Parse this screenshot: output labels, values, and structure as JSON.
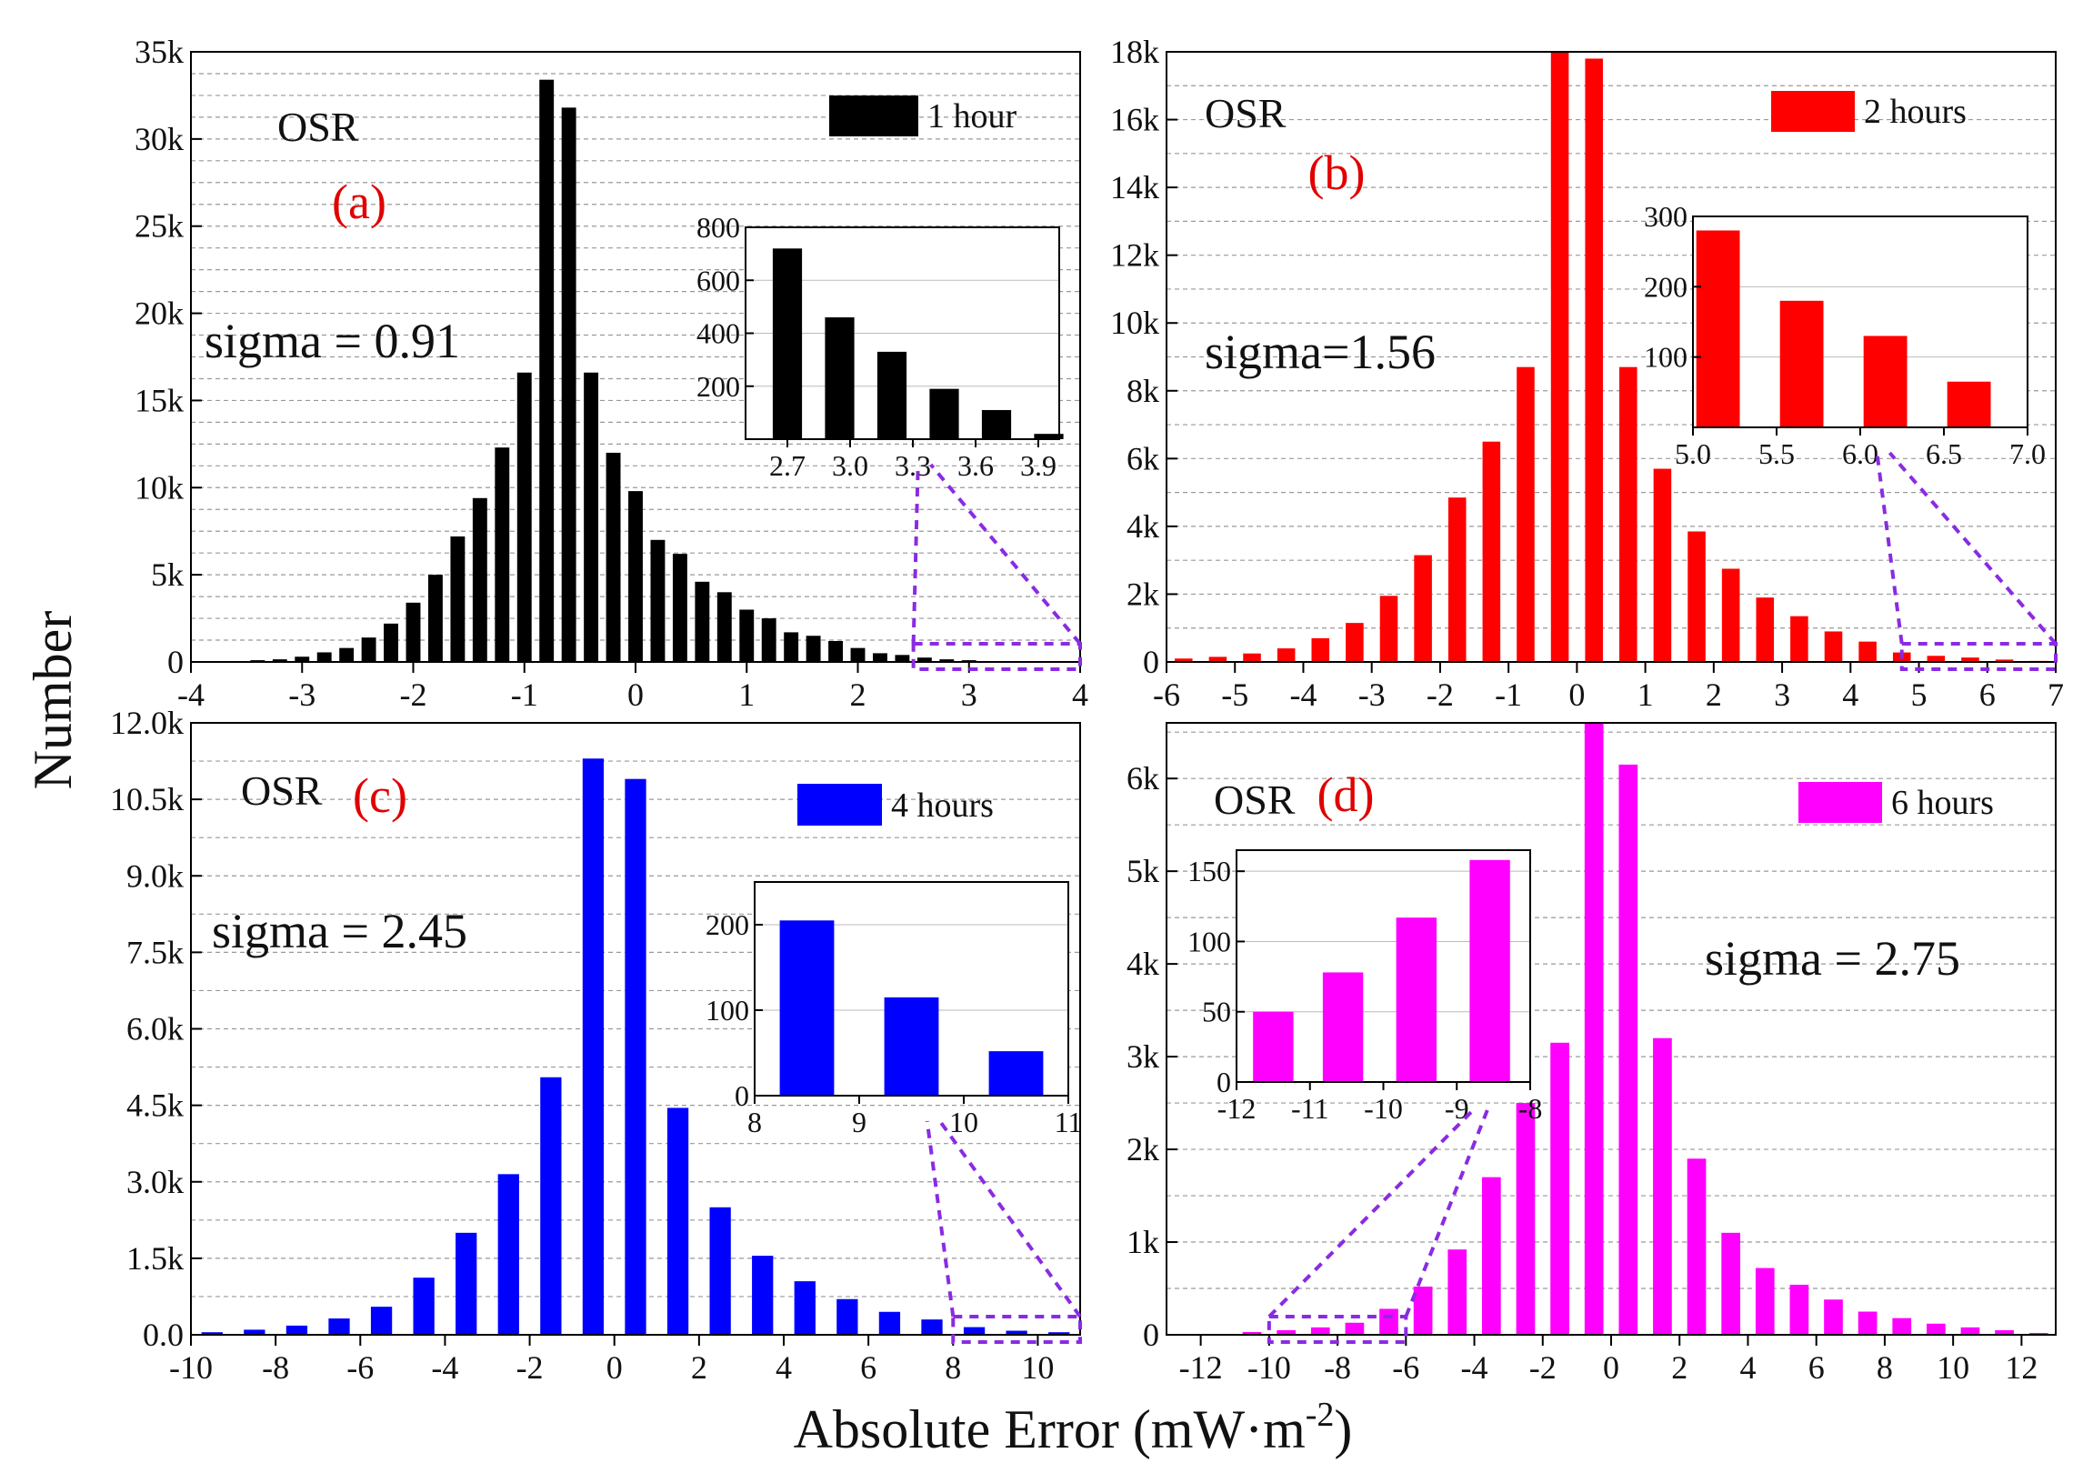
{
  "figure": {
    "y_label": "Number",
    "x_label": "Absolute Error (mW·m",
    "x_label_sup": "-2",
    "x_label_close": ")"
  },
  "chart_data": [
    {
      "type": "bar",
      "panel": "(a)",
      "label": "(a)",
      "method": "OSR",
      "legend": "1 hour",
      "sigma_text": "sigma = 0.91",
      "color": "#000000",
      "xlim": [
        -4,
        4
      ],
      "ylim": [
        0,
        35000
      ],
      "xticks": [
        -4,
        -3,
        -2,
        -1,
        0,
        1,
        2,
        3,
        4
      ],
      "xtick_labels": [
        "-4",
        "-3",
        "-2",
        "-1",
        "0",
        "1",
        "2",
        "3",
        "4"
      ],
      "yticks": [
        0,
        5000,
        10000,
        15000,
        20000,
        25000,
        30000,
        35000
      ],
      "ytick_labels": [
        "0",
        "5k",
        "10k",
        "15k",
        "20k",
        "25k",
        "30k",
        "35k"
      ],
      "minor_y_step": 1250,
      "bar_width": 0.13,
      "x": [
        -3.6,
        -3.4,
        -3.2,
        -3.0,
        -2.8,
        -2.6,
        -2.4,
        -2.2,
        -2.0,
        -1.8,
        -1.6,
        -1.4,
        -1.2,
        -1.0,
        -0.8,
        -0.6,
        -0.4,
        -0.2,
        0.0,
        0.2,
        0.4,
        0.6,
        0.8,
        1.0,
        1.2,
        1.4,
        1.6,
        1.8,
        2.0,
        2.2,
        2.4,
        2.6,
        2.8,
        3.0,
        3.2,
        3.4,
        3.6
      ],
      "values": [
        30,
        100,
        150,
        300,
        550,
        800,
        1400,
        2200,
        3400,
        5000,
        7200,
        9400,
        12300,
        16600,
        33400,
        31800,
        16600,
        12000,
        9800,
        7000,
        6200,
        4600,
        4000,
        3000,
        2500,
        1700,
        1500,
        1200,
        800,
        500,
        400,
        250,
        150,
        100,
        50,
        20,
        10
      ],
      "inset": {
        "xlim": [
          2.5,
          4.0
        ],
        "ylim": [
          0,
          800
        ],
        "xticks": [
          2.7,
          3.0,
          3.3,
          3.6,
          3.9
        ],
        "xtick_labels": [
          "2.7",
          "3.0",
          "3.3",
          "3.6",
          "3.9"
        ],
        "yticks": [
          200,
          400,
          600,
          800
        ],
        "ytick_labels": [
          "200",
          "400",
          "600",
          "800"
        ],
        "bar_width": 0.14,
        "x": [
          2.7,
          2.95,
          3.2,
          3.45,
          3.7,
          3.95
        ],
        "values": [
          720,
          460,
          330,
          190,
          110,
          20
        ]
      },
      "zoom_range": [
        2.5,
        4.0
      ]
    },
    {
      "type": "bar",
      "panel": "(b)",
      "label": "(b)",
      "method": "OSR",
      "legend": "2 hours",
      "sigma_text": "sigma=1.56",
      "color": "#ff0000",
      "xlim": [
        -6,
        7
      ],
      "ylim": [
        0,
        18000
      ],
      "xticks": [
        -6,
        -5,
        -4,
        -3,
        -2,
        -1,
        0,
        1,
        2,
        3,
        4,
        5,
        6,
        7
      ],
      "xtick_labels": [
        "-6",
        "-5",
        "-4",
        "-3",
        "-2",
        "-1",
        "0",
        "1",
        "2",
        "3",
        "4",
        "5",
        "6",
        "7"
      ],
      "yticks": [
        0,
        2000,
        4000,
        6000,
        8000,
        10000,
        12000,
        14000,
        16000,
        18000
      ],
      "ytick_labels": [
        "0",
        "2k",
        "4k",
        "6k",
        "8k",
        "10k",
        "12k",
        "14k",
        "16k",
        "18k"
      ],
      "minor_y_step": 1000,
      "bar_width": 0.26,
      "x": [
        -5.75,
        -5.25,
        -4.75,
        -4.25,
        -3.75,
        -3.25,
        -2.75,
        -2.25,
        -1.75,
        -1.25,
        -0.75,
        -0.25,
        0.25,
        0.75,
        1.25,
        1.75,
        2.25,
        2.75,
        3.25,
        3.75,
        4.25,
        4.75,
        5.25,
        5.75,
        6.25,
        6.75
      ],
      "values": [
        100,
        150,
        250,
        400,
        700,
        1150,
        1950,
        3150,
        4850,
        6500,
        8700,
        18200,
        17800,
        8700,
        5700,
        3850,
        2750,
        1900,
        1350,
        900,
        600,
        280,
        180,
        130,
        70,
        30
      ],
      "inset": {
        "xlim": [
          5.0,
          7.0
        ],
        "ylim": [
          0,
          300
        ],
        "xticks": [
          5.0,
          5.5,
          6.0,
          6.5,
          7.0
        ],
        "xtick_labels": [
          "5.0",
          "5.5",
          "6.0",
          "6.5",
          "7.0"
        ],
        "yticks": [
          100,
          200,
          300
        ],
        "ytick_labels": [
          "100",
          "200",
          "300"
        ],
        "bar_width": 0.26,
        "x": [
          5.15,
          5.65,
          6.15,
          6.65
        ],
        "values": [
          280,
          180,
          130,
          65
        ]
      },
      "zoom_range": [
        4.75,
        7.0
      ]
    },
    {
      "type": "bar",
      "panel": "(c)",
      "label": "(c)",
      "method": "OSR",
      "legend": "4 hours",
      "sigma_text": "sigma = 2.45",
      "color": "#0000ff",
      "xlim": [
        -10,
        11
      ],
      "ylim": [
        0,
        12000
      ],
      "xticks": [
        -10,
        -8,
        -6,
        -4,
        -2,
        0,
        2,
        4,
        6,
        8,
        10
      ],
      "xtick_labels": [
        "-10",
        "-8",
        "-6",
        "-4",
        "-2",
        "0",
        "2",
        "4",
        "6",
        "8",
        "10"
      ],
      "yticks": [
        0,
        1500,
        3000,
        4500,
        6000,
        7500,
        9000,
        10500,
        12000
      ],
      "ytick_labels": [
        "0.0",
        "1.5k",
        "3.0k",
        "4.5k",
        "6.0k",
        "7.5k",
        "9.0k",
        "10.5k",
        "12.0k"
      ],
      "minor_y_step": 750,
      "bar_width": 0.5,
      "x": [
        -9.5,
        -8.5,
        -7.5,
        -6.5,
        -5.5,
        -4.5,
        -3.5,
        -2.5,
        -1.5,
        -0.5,
        0.5,
        1.5,
        2.5,
        3.5,
        4.5,
        5.5,
        6.5,
        7.5,
        8.5,
        9.5,
        10.5
      ],
      "values": [
        50,
        100,
        180,
        320,
        550,
        1120,
        2000,
        3150,
        5050,
        11300,
        10900,
        4450,
        2500,
        1550,
        1050,
        700,
        450,
        300,
        150,
        80,
        50
      ],
      "inset": {
        "xlim": [
          8,
          11
        ],
        "ylim": [
          0,
          250
        ],
        "xticks": [
          8,
          9,
          10,
          11
        ],
        "xtick_labels": [
          "8",
          "9",
          "10",
          "11"
        ],
        "bar_width": 0.52,
        "yticks": [
          0,
          100,
          200
        ],
        "ytick_labels": [
          "0",
          "100",
          "200"
        ],
        "x": [
          8.5,
          9.5,
          10.5
        ],
        "values": [
          205,
          115,
          52
        ]
      },
      "zoom_range": [
        8,
        11
      ]
    },
    {
      "type": "bar",
      "panel": "(d)",
      "label": "(d)",
      "method": "OSR",
      "legend": "6 hours",
      "sigma_text": "sigma = 2.75",
      "color": "#ff00ff",
      "xlim": [
        -13,
        13
      ],
      "ylim": [
        0,
        6600
      ],
      "xticks": [
        -12,
        -10,
        -8,
        -6,
        -4,
        -2,
        0,
        2,
        4,
        6,
        8,
        10,
        12
      ],
      "xtick_labels": [
        "-12",
        "-10",
        "-8",
        "-6",
        "-4",
        "-2",
        "0",
        "2",
        "4",
        "6",
        "8",
        "10",
        "12"
      ],
      "yticks": [
        0,
        1000,
        2000,
        3000,
        4000,
        5000,
        6000
      ],
      "ytick_labels": [
        "0",
        "1k",
        "2k",
        "3k",
        "4k",
        "5k",
        "6k"
      ],
      "minor_y_step": 500,
      "bar_width": 0.55,
      "x": [
        -10.5,
        -9.5,
        -8.5,
        -7.5,
        -6.5,
        -5.5,
        -4.5,
        -3.5,
        -2.5,
        -1.5,
        -0.5,
        0.5,
        1.5,
        2.5,
        3.5,
        4.5,
        5.5,
        6.5,
        7.5,
        8.5,
        9.5,
        10.5,
        11.5,
        12.5
      ],
      "values": [
        30,
        50,
        80,
        130,
        280,
        520,
        920,
        1700,
        2500,
        3150,
        6650,
        6150,
        3200,
        1900,
        1100,
        720,
        540,
        380,
        250,
        180,
        120,
        80,
        50,
        20
      ],
      "inset": {
        "xlim": [
          -12,
          -8
        ],
        "ylim": [
          0,
          165
        ],
        "xticks": [
          -12,
          -11,
          -10,
          -9,
          -8
        ],
        "xtick_labels": [
          "-12",
          "-11",
          "-10",
          "-9",
          "-8"
        ],
        "yticks": [
          0,
          50,
          100,
          150
        ],
        "ytick_labels": [
          "0",
          "50",
          "100",
          "150"
        ],
        "bar_width": 0.55,
        "x": [
          -11.5,
          -10.55,
          -9.55,
          -8.55
        ],
        "values": [
          50,
          78,
          117,
          158
        ]
      },
      "zoom_range": [
        -10,
        -6
      ]
    }
  ]
}
